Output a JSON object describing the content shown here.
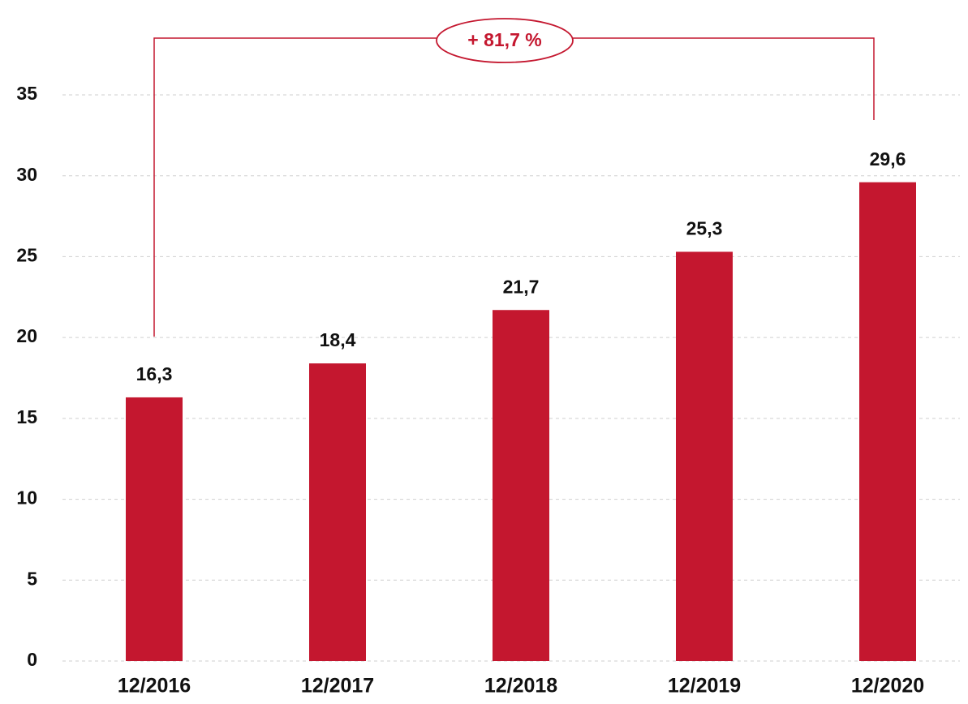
{
  "chart_data": {
    "type": "bar",
    "categories": [
      "12/2016",
      "12/2017",
      "12/2018",
      "12/2019",
      "12/2020"
    ],
    "values": [
      16.3,
      18.4,
      21.7,
      25.3,
      29.6
    ],
    "value_labels": [
      "16,3",
      "18,4",
      "21,7",
      "25,3",
      "29,6"
    ],
    "color": "#c4172f",
    "annotation": "+ 81,7 %",
    "ylim": [
      0,
      35
    ],
    "yticks": [
      0,
      5,
      10,
      15,
      20,
      25,
      30,
      35
    ],
    "grid": true
  }
}
